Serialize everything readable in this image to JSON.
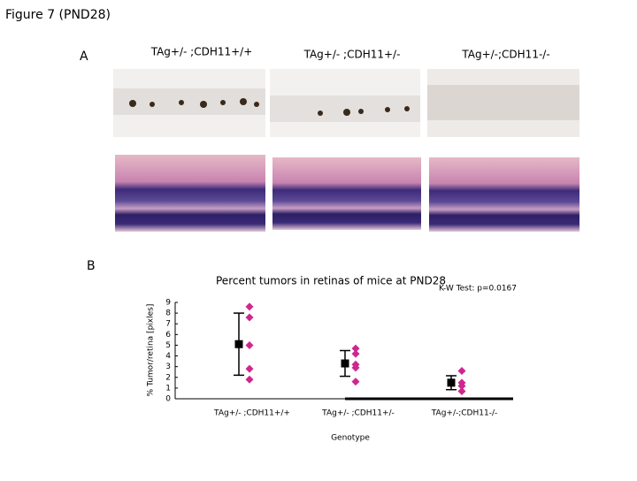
{
  "figure": {
    "title": "Figure 7 (PND28)",
    "panel_a": "A",
    "panel_b": "B",
    "columns": [
      "TAg+/- ;CDH11+/+",
      "TAg+/- ;CDH11+/-",
      "TAg+/-;CDH11-/-"
    ]
  },
  "chart_data": {
    "type": "scatter",
    "title": "Percent tumors in retinas of mice at PND28",
    "annotation": "K-W Test: p=0.0167",
    "y_label": "% Tumor/retina [pixles]",
    "x_label": "Genotype",
    "categories": [
      "TAg+/- ;CDH11+/+",
      "TAg+/- ;CDH11+/-",
      "TAg+/-;CDH11-/-"
    ],
    "points": [
      [
        8.6,
        7.6,
        5.0,
        2.8,
        1.8
      ],
      [
        4.7,
        4.2,
        3.2,
        2.9,
        1.6
      ],
      [
        2.6,
        1.5,
        1.2,
        0.7
      ]
    ],
    "point_color": "#d0268f",
    "means": [
      5.1,
      3.3,
      1.5
    ],
    "errors": [
      2.9,
      1.2,
      0.65
    ],
    "mean_color": "#000000",
    "ylim": [
      0,
      9
    ],
    "yticks": [
      0,
      1,
      2,
      3,
      4,
      5,
      6,
      7,
      8,
      9
    ]
  }
}
